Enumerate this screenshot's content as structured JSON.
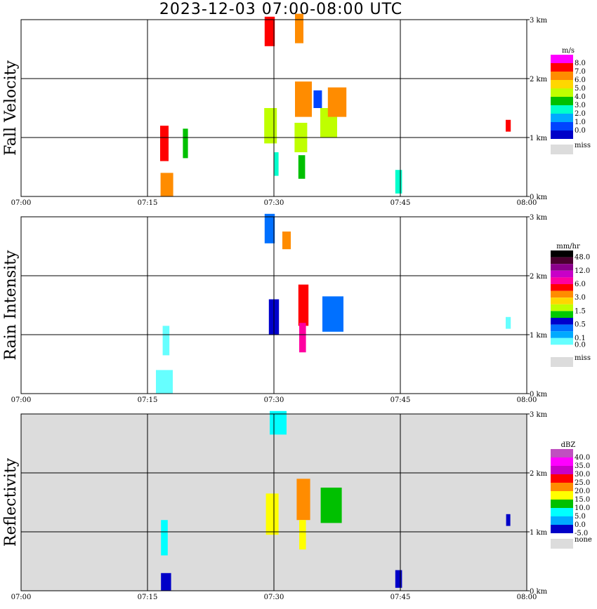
{
  "chart_data": {
    "type": "heatmap",
    "title": "2023-12-03   07:00-08:00 UTC",
    "x_ticks": [
      "07:00",
      "07:15",
      "07:30",
      "07:45",
      "08:00"
    ],
    "x_range_minutes": [
      0,
      60
    ],
    "y_ticks": [
      "0 km",
      "1 km",
      "2 km",
      "3 km"
    ],
    "y_range_km": [
      0,
      3.0
    ],
    "grid": true,
    "panels": [
      {
        "ylabel": "Fall Velocity",
        "background": "#ffffff",
        "legend": {
          "unit": "m/s",
          "labels": [
            "8.0",
            "7.0",
            "6.0",
            "5.0",
            "4.0",
            "3.0",
            "2.0",
            "1.0",
            "0.0"
          ],
          "colors": [
            "#ff00ff",
            "#ff0000",
            "#ff8c00",
            "#ffd700",
            "#bfff00",
            "#00c000",
            "#00ffcc",
            "#00aaff",
            "#0044ff",
            "#0000c8"
          ],
          "missing_label": "miss",
          "missing_color": "#dcdcdc"
        },
        "cells": [
          {
            "t": 29.5,
            "z": 2.8,
            "w": 1.2,
            "h": 0.5,
            "c": 1
          },
          {
            "t": 33.0,
            "z": 2.85,
            "w": 1.0,
            "h": 0.5,
            "c": 2
          },
          {
            "t": 29.6,
            "z": 1.2,
            "w": 1.5,
            "h": 0.6,
            "c": 4
          },
          {
            "t": 30.3,
            "z": 0.55,
            "w": 0.5,
            "h": 0.4,
            "c": 6
          },
          {
            "t": 33.5,
            "z": 1.65,
            "w": 2.0,
            "h": 0.6,
            "c": 2
          },
          {
            "t": 33.2,
            "z": 1.0,
            "w": 1.5,
            "h": 0.5,
            "c": 4
          },
          {
            "t": 33.3,
            "z": 0.5,
            "w": 0.8,
            "h": 0.4,
            "c": 5
          },
          {
            "t": 35.2,
            "z": 1.65,
            "w": 1.0,
            "h": 0.3,
            "c": 8
          },
          {
            "t": 36.5,
            "z": 1.25,
            "w": 2.0,
            "h": 0.5,
            "c": 4
          },
          {
            "t": 37.5,
            "z": 1.6,
            "w": 2.2,
            "h": 0.5,
            "c": 2
          },
          {
            "t": 17.0,
            "z": 0.9,
            "w": 1.0,
            "h": 0.6,
            "c": 1
          },
          {
            "t": 17.3,
            "z": 0.2,
            "w": 1.5,
            "h": 0.4,
            "c": 2
          },
          {
            "t": 19.5,
            "z": 0.9,
            "w": 0.6,
            "h": 0.5,
            "c": 5
          },
          {
            "t": 44.8,
            "z": 0.25,
            "w": 0.8,
            "h": 0.4,
            "c": 6
          },
          {
            "t": 57.8,
            "z": 1.2,
            "w": 0.6,
            "h": 0.2,
            "c": 1
          }
        ]
      },
      {
        "ylabel": "Rain Intensity",
        "background": "#ffffff",
        "legend": {
          "unit": "mm/hr",
          "labels": [
            "48.0",
            "",
            "12.0",
            "",
            "6.0",
            "",
            "3.0",
            "",
            "1.5",
            "",
            "0.5",
            "",
            "0.1",
            "0.0"
          ],
          "colors": [
            "#000000",
            "#4b0030",
            "#8b008b",
            "#c800c8",
            "#ff00a0",
            "#ff0000",
            "#ff8c00",
            "#ffd700",
            "#bfff00",
            "#00c800",
            "#0000cc",
            "#0070ff",
            "#00aaff",
            "#66ffff",
            "#ffffff"
          ],
          "missing_label": "miss",
          "missing_color": "#dcdcdc"
        },
        "cells": [
          {
            "t": 29.5,
            "z": 2.8,
            "w": 1.2,
            "h": 0.5,
            "c": 11
          },
          {
            "t": 31.5,
            "z": 2.6,
            "w": 1.0,
            "h": 0.3,
            "c": 6
          },
          {
            "t": 30.0,
            "z": 1.3,
            "w": 1.2,
            "h": 0.6,
            "c": 10
          },
          {
            "t": 33.5,
            "z": 1.5,
            "w": 1.2,
            "h": 0.7,
            "c": 5
          },
          {
            "t": 33.4,
            "z": 0.95,
            "w": 0.8,
            "h": 0.5,
            "c": 4
          },
          {
            "t": 37.0,
            "z": 1.35,
            "w": 2.5,
            "h": 0.6,
            "c": 11
          },
          {
            "t": 17.2,
            "z": 0.9,
            "w": 0.8,
            "h": 0.5,
            "c": 13
          },
          {
            "t": 17.0,
            "z": 0.2,
            "w": 2.0,
            "h": 0.4,
            "c": 13
          },
          {
            "t": 57.8,
            "z": 1.2,
            "w": 0.6,
            "h": 0.2,
            "c": 13
          }
        ]
      },
      {
        "ylabel": "Reflectivity",
        "background": "#dcdcdc",
        "legend": {
          "unit": "dBZ",
          "labels": [
            "40.0",
            "35.0",
            "30.0",
            "25.0",
            "20.0",
            "15.0",
            "10.0",
            "5.0",
            "0.0",
            "-5.0"
          ],
          "colors": [
            "#c050c0",
            "#ff00ff",
            "#c800c8",
            "#ff0000",
            "#ff8c00",
            "#ffff00",
            "#00c000",
            "#00ffff",
            "#00aaff",
            "#0000c8"
          ],
          "missing_label": "none",
          "missing_color": "#dcdcdc"
        },
        "cells": [
          {
            "t": 30.5,
            "z": 2.85,
            "w": 2.0,
            "h": 0.4,
            "c": 7
          },
          {
            "t": 29.8,
            "z": 1.3,
            "w": 1.5,
            "h": 0.7,
            "c": 5
          },
          {
            "t": 33.5,
            "z": 1.55,
            "w": 1.6,
            "h": 0.7,
            "c": 4
          },
          {
            "t": 33.4,
            "z": 0.95,
            "w": 0.8,
            "h": 0.5,
            "c": 5
          },
          {
            "t": 36.8,
            "z": 1.45,
            "w": 2.5,
            "h": 0.6,
            "c": 6
          },
          {
            "t": 17.0,
            "z": 0.9,
            "w": 0.8,
            "h": 0.6,
            "c": 7
          },
          {
            "t": 17.2,
            "z": 0.15,
            "w": 1.2,
            "h": 0.3,
            "c": 9
          },
          {
            "t": 44.8,
            "z": 0.2,
            "w": 0.8,
            "h": 0.3,
            "c": 9
          },
          {
            "t": 57.8,
            "z": 1.2,
            "w": 0.5,
            "h": 0.2,
            "c": 9
          }
        ]
      }
    ]
  }
}
